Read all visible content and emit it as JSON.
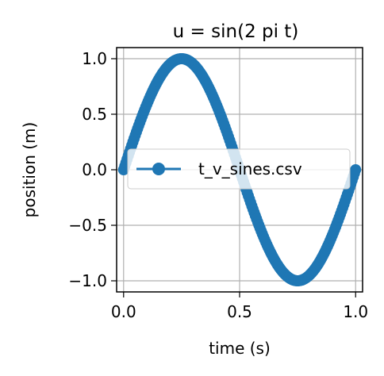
{
  "chart_data": {
    "type": "line",
    "title": "u = sin(2 pi t)",
    "xlabel": "time (s)",
    "ylabel": "position (m)",
    "xlim": [
      -0.03,
      1.03
    ],
    "ylim": [
      -1.1,
      1.1
    ],
    "xticks": [
      0.0,
      0.5,
      1.0
    ],
    "xtick_labels": [
      "0.0",
      "0.5",
      "1.0"
    ],
    "yticks": [
      1.0,
      0.5,
      0.0,
      -0.5,
      -1.0
    ],
    "ytick_labels": [
      "1.0",
      "0.5",
      "0.0",
      "−0.5",
      "−1.0"
    ],
    "grid": true,
    "legend_position": "center",
    "series": [
      {
        "name": "t_v_sines.csv",
        "color": "#1f77b4",
        "marker": "circle",
        "function": "sin(2*pi*t)",
        "x_range": [
          0,
          1
        ],
        "num_points": 200
      }
    ]
  }
}
